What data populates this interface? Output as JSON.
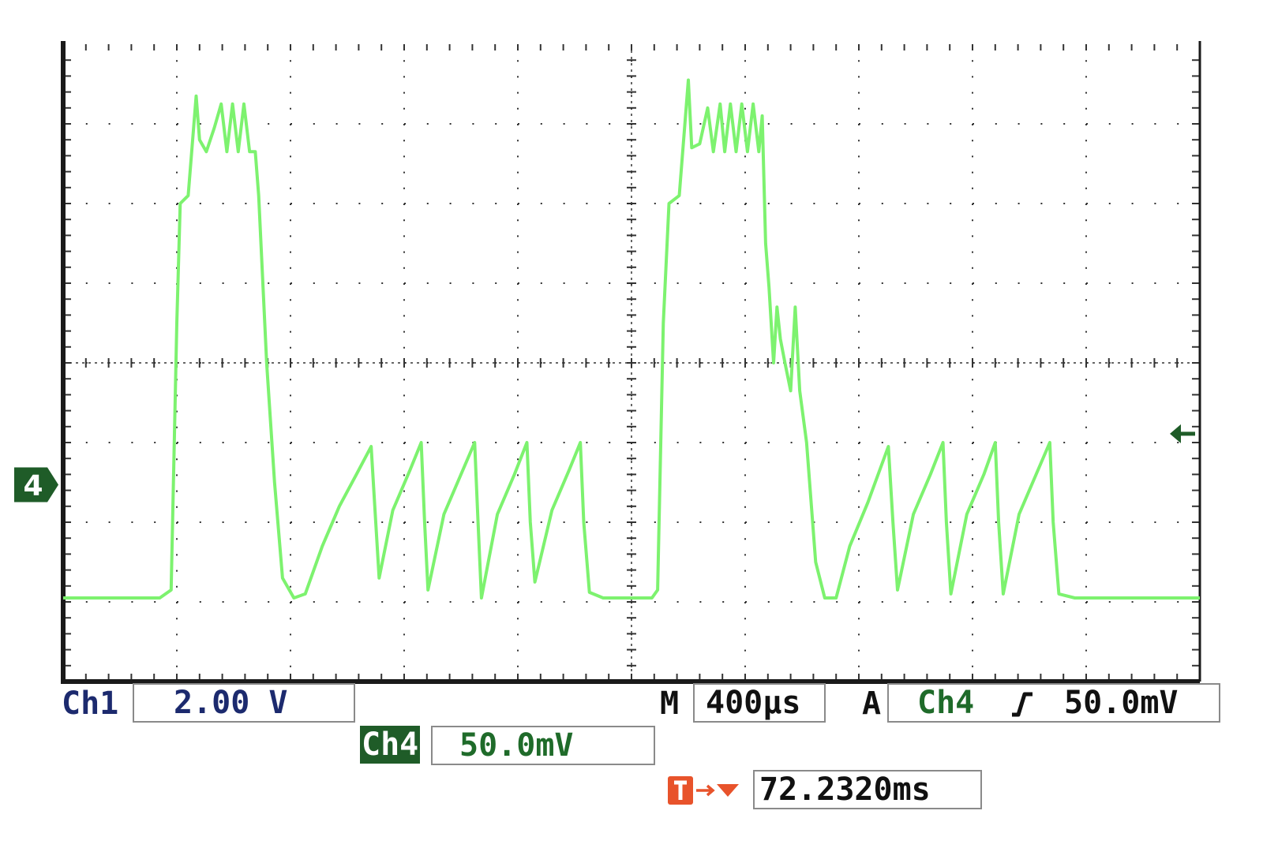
{
  "colors": {
    "trace": "#7df26f",
    "grid": "#333333",
    "frame": "#1a1a1a",
    "ch1": "#1c2a6e",
    "ch4": "#1f5c28",
    "trigger": "#e8532b"
  },
  "readouts": {
    "ch1_label": "Ch1",
    "ch1_scale": "2.00 V",
    "ch4_label": "Ch4",
    "ch4_scale": "50.0mV",
    "timebase_label": "M",
    "timebase": "400µs",
    "trigger_mode": "A",
    "trigger_source": "Ch4",
    "trigger_slope_icon": "rising-edge-icon",
    "trigger_level": "50.0mV",
    "trigger_position_icon": "trigger-position-icon",
    "trigger_position": "72.2320ms",
    "channel_marker": "4"
  },
  "chart_data": {
    "type": "line",
    "title": "",
    "xlabel": "",
    "ylabel": "",
    "x_unit": "divisions",
    "y_unit": "divisions",
    "xlim": [
      0,
      10
    ],
    "ylim": [
      -4,
      4
    ],
    "divisions": {
      "x": 10,
      "y": 8
    },
    "grid": true,
    "ground_level_div": -1.53,
    "trigger_level_div": -0.89,
    "series": [
      {
        "points": [
          [
            0.0,
            -2.95
          ],
          [
            0.85,
            -2.95
          ],
          [
            0.95,
            -2.85
          ],
          [
            1.0,
            0.5
          ],
          [
            1.03,
            2.0
          ],
          [
            1.1,
            2.1
          ],
          [
            1.17,
            3.35
          ],
          [
            1.2,
            2.8
          ],
          [
            1.26,
            2.65
          ],
          [
            1.33,
            2.95
          ],
          [
            1.39,
            3.25
          ],
          [
            1.44,
            2.65
          ],
          [
            1.49,
            3.25
          ],
          [
            1.54,
            2.65
          ],
          [
            1.59,
            3.25
          ],
          [
            1.64,
            2.65
          ],
          [
            1.69,
            2.65
          ],
          [
            1.72,
            2.1
          ],
          [
            1.79,
            0.0
          ],
          [
            1.86,
            -1.5
          ],
          [
            1.93,
            -2.7
          ],
          [
            2.03,
            -2.95
          ],
          [
            2.13,
            -2.9
          ],
          [
            2.28,
            -2.3
          ],
          [
            2.43,
            -1.8
          ],
          [
            2.58,
            -1.4
          ],
          [
            2.71,
            -1.05
          ],
          [
            2.75,
            -2.0
          ],
          [
            2.78,
            -2.7
          ],
          [
            2.9,
            -1.85
          ],
          [
            3.05,
            -1.35
          ],
          [
            3.15,
            -1.0
          ],
          [
            3.18,
            -2.0
          ],
          [
            3.21,
            -2.85
          ],
          [
            3.35,
            -1.9
          ],
          [
            3.5,
            -1.4
          ],
          [
            3.62,
            -1.0
          ],
          [
            3.65,
            -2.0
          ],
          [
            3.68,
            -2.95
          ],
          [
            3.82,
            -1.9
          ],
          [
            3.97,
            -1.4
          ],
          [
            4.08,
            -1.0
          ],
          [
            4.11,
            -2.0
          ],
          [
            4.15,
            -2.75
          ],
          [
            4.3,
            -1.85
          ],
          [
            4.45,
            -1.35
          ],
          [
            4.55,
            -1.0
          ],
          [
            4.58,
            -2.0
          ],
          [
            4.63,
            -2.88
          ],
          [
            4.75,
            -2.95
          ],
          [
            5.0,
            -2.95
          ],
          [
            5.18,
            -2.95
          ],
          [
            5.23,
            -2.85
          ],
          [
            5.28,
            0.5
          ],
          [
            5.33,
            2.0
          ],
          [
            5.42,
            2.1
          ],
          [
            5.5,
            3.55
          ],
          [
            5.53,
            2.7
          ],
          [
            5.6,
            2.75
          ],
          [
            5.67,
            3.2
          ],
          [
            5.72,
            2.65
          ],
          [
            5.78,
            3.25
          ],
          [
            5.82,
            2.65
          ],
          [
            5.87,
            3.25
          ],
          [
            5.92,
            2.65
          ],
          [
            5.97,
            3.25
          ],
          [
            6.02,
            2.65
          ],
          [
            6.07,
            3.25
          ],
          [
            6.12,
            2.65
          ],
          [
            6.15,
            3.1
          ],
          [
            6.18,
            1.5
          ],
          [
            6.21,
            0.95
          ],
          [
            6.25,
            0.0
          ],
          [
            6.28,
            0.7
          ],
          [
            6.31,
            0.3
          ],
          [
            6.35,
            0.0
          ],
          [
            6.4,
            -0.35
          ],
          [
            6.44,
            0.7
          ],
          [
            6.48,
            -0.35
          ],
          [
            6.54,
            -1.0
          ],
          [
            6.62,
            -2.5
          ],
          [
            6.7,
            -2.95
          ],
          [
            6.8,
            -2.95
          ],
          [
            6.92,
            -2.3
          ],
          [
            7.08,
            -1.75
          ],
          [
            7.26,
            -1.05
          ],
          [
            7.3,
            -2.0
          ],
          [
            7.34,
            -2.85
          ],
          [
            7.48,
            -1.9
          ],
          [
            7.63,
            -1.4
          ],
          [
            7.74,
            -1.0
          ],
          [
            7.77,
            -2.0
          ],
          [
            7.81,
            -2.9
          ],
          [
            7.95,
            -1.9
          ],
          [
            8.1,
            -1.4
          ],
          [
            8.2,
            -1.0
          ],
          [
            8.23,
            -2.0
          ],
          [
            8.27,
            -2.9
          ],
          [
            8.41,
            -1.9
          ],
          [
            8.56,
            -1.4
          ],
          [
            8.68,
            -1.0
          ],
          [
            8.71,
            -2.0
          ],
          [
            8.76,
            -2.9
          ],
          [
            8.9,
            -2.95
          ],
          [
            10.0,
            -2.95
          ]
        ]
      }
    ]
  }
}
